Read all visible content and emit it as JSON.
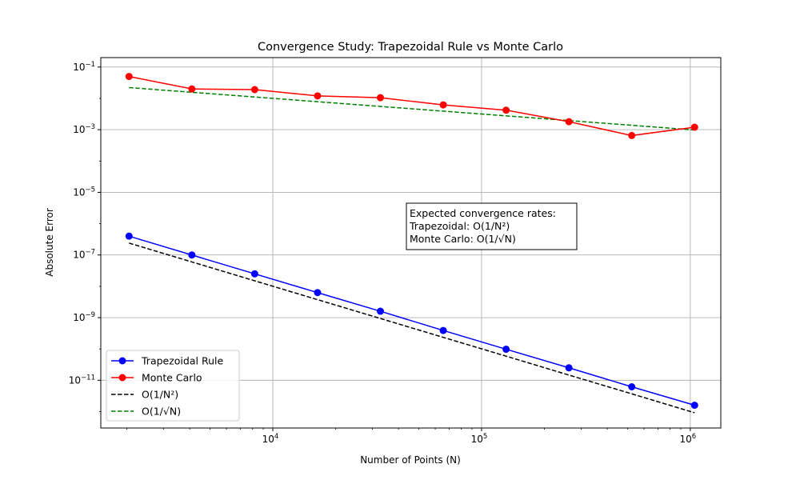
{
  "chart_data": {
    "type": "line",
    "title": "Convergence Study: Trapezoidal Rule vs Monte Carlo",
    "xlabel": "Number of Points (N)",
    "ylabel": "Absolute Error",
    "xscale": "log",
    "yscale": "log",
    "xlim": [
      1500,
      1400000
    ],
    "ylim": [
      3e-13,
      0.2
    ],
    "grid": true,
    "legend_position": "lower-left",
    "x_ticks": [
      {
        "value": 10000,
        "base": "10",
        "exp": "4"
      },
      {
        "value": 100000,
        "base": "10",
        "exp": "5"
      },
      {
        "value": 1000000,
        "base": "10",
        "exp": "6"
      }
    ],
    "y_ticks": [
      {
        "value": 0.1,
        "base": "10",
        "exp": "−1"
      },
      {
        "value": 0.001,
        "base": "10",
        "exp": "−3"
      },
      {
        "value": 1e-05,
        "base": "10",
        "exp": "−5"
      },
      {
        "value": 1e-07,
        "base": "10",
        "exp": "−7"
      },
      {
        "value": 1e-09,
        "base": "10",
        "exp": "−9"
      },
      {
        "value": 1e-11,
        "base": "10",
        "exp": "−11"
      }
    ],
    "x": [
      2048,
      4096,
      8192,
      16384,
      32768,
      65536,
      131072,
      262144,
      524288,
      1048576
    ],
    "series": [
      {
        "name": "Trapezoidal Rule",
        "color": "#0000ff",
        "style": "solid",
        "marker": "circle",
        "values": [
          4e-07,
          1e-07,
          2.5e-08,
          6.3e-09,
          1.6e-09,
          3.9e-10,
          9.8e-11,
          2.5e-11,
          6.2e-12,
          1.6e-12
        ]
      },
      {
        "name": "Monte Carlo",
        "color": "#ff0000",
        "style": "solid",
        "marker": "circle",
        "values": [
          0.05,
          0.02,
          0.019,
          0.012,
          0.0105,
          0.0062,
          0.0042,
          0.0018,
          0.00065,
          0.0012
        ]
      },
      {
        "name": "O(1/N²)",
        "color": "#000000",
        "style": "dashed",
        "marker": "none",
        "values": [
          2.4e-07,
          6e-08,
          1.5e-08,
          3.75e-09,
          9.4e-10,
          2.35e-10,
          5.9e-11,
          1.47e-11,
          3.7e-12,
          9.2e-13
        ]
      },
      {
        "name": "O(1/√N)",
        "color": "#008000",
        "style": "dashed",
        "marker": "none",
        "values": [
          0.0221,
          0.01563,
          0.01105,
          0.00781,
          0.005525,
          0.003906,
          0.002762,
          0.001953,
          0.001381,
          0.000977
        ]
      }
    ],
    "annotation": {
      "lines": [
        "Expected convergence rates:",
        "Trapezoidal: O(1/N²)",
        "Monte Carlo: O(1/√N)"
      ]
    }
  }
}
